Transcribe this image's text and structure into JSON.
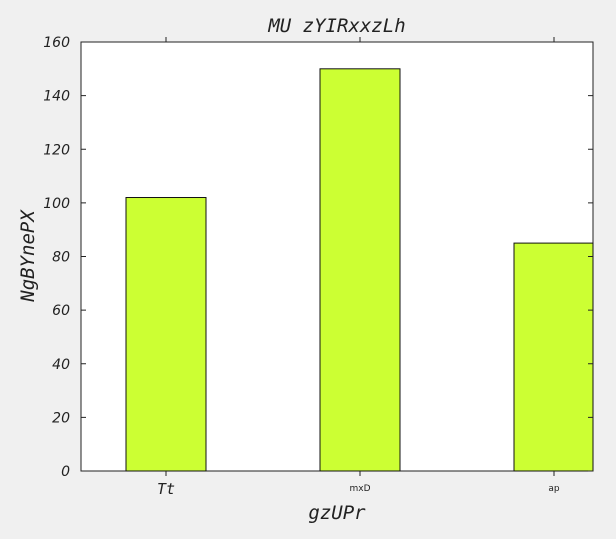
{
  "chart_data": {
    "type": "bar",
    "title": "MU zYIRxxzLh",
    "xlabel": "gzUPr",
    "ylabel": "NgBYnePX",
    "categories": [
      "Tt",
      "mxD",
      "ap"
    ],
    "values": [
      102,
      150,
      85
    ],
    "ylim": [
      0,
      160
    ],
    "yticks": [
      0,
      20,
      40,
      60,
      80,
      100,
      120,
      140,
      160
    ],
    "bar_color": "#ccff33",
    "grid": false,
    "legend": "none"
  }
}
